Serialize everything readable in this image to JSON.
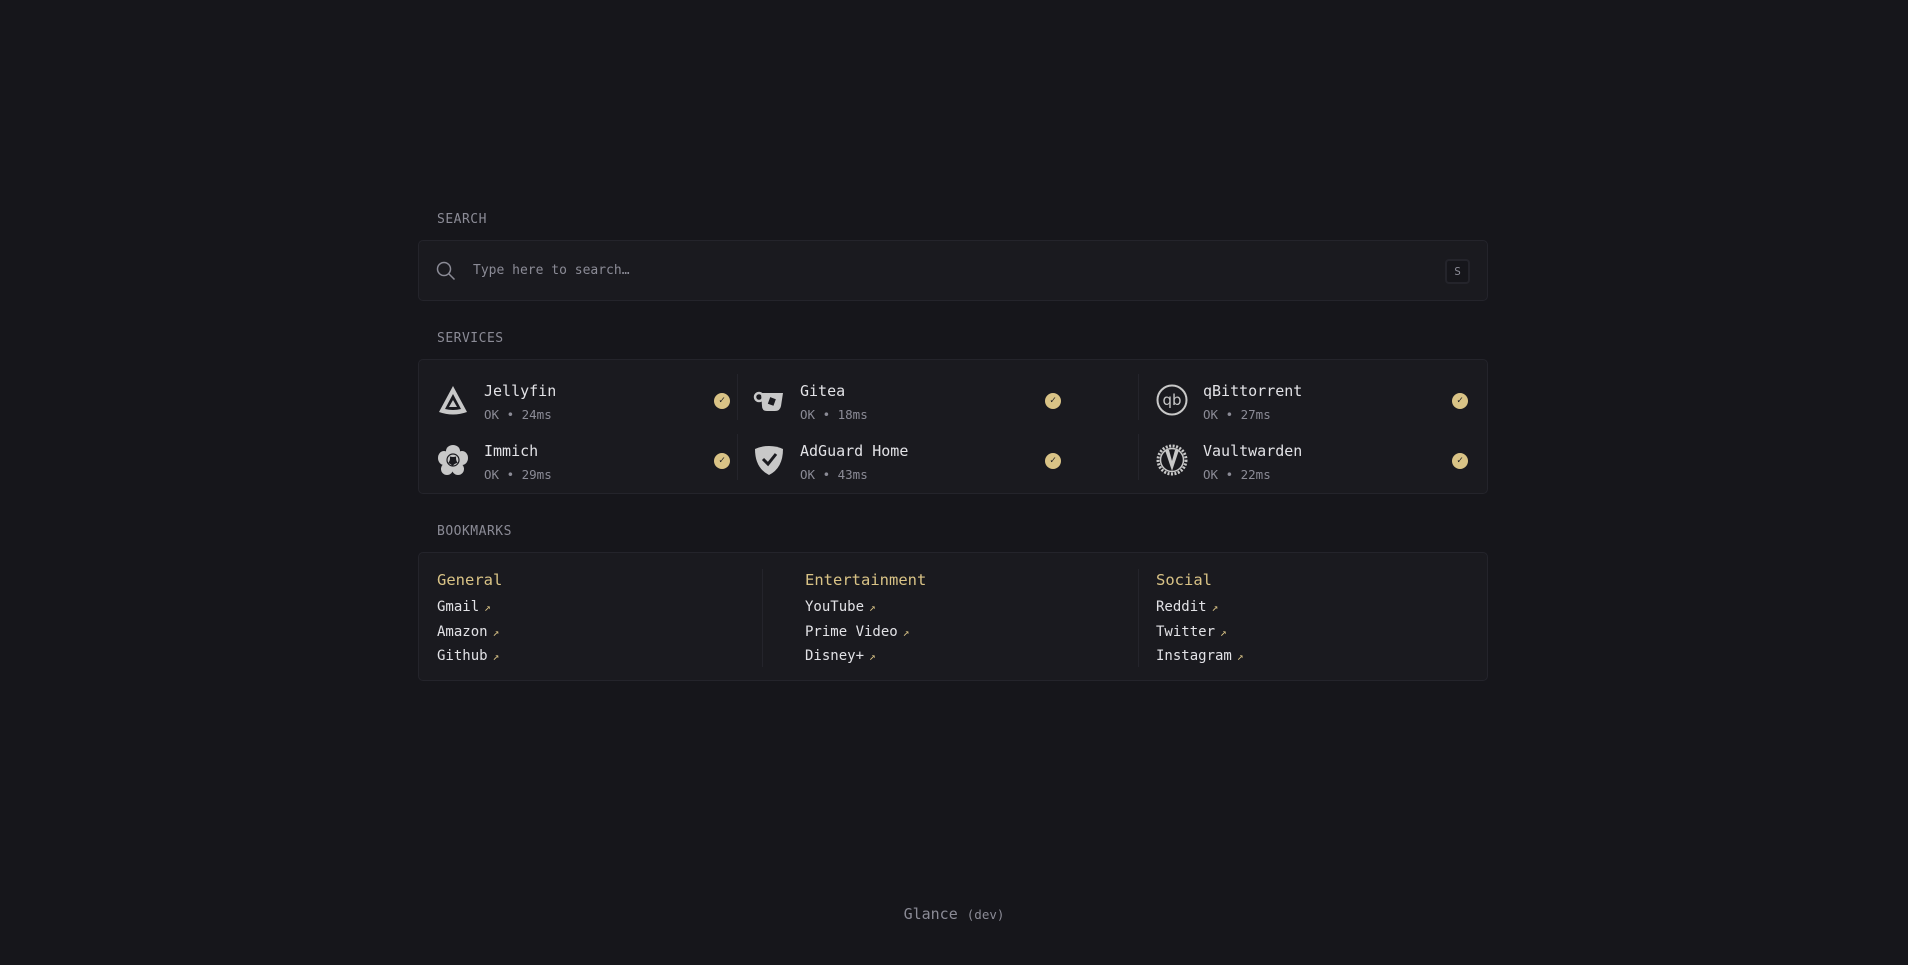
{
  "search": {
    "label": "SEARCH",
    "placeholder": "Type here to search…",
    "shortcut": "S"
  },
  "services": {
    "label": "SERVICES",
    "items": [
      {
        "name": "Jellyfin",
        "status": "OK • 24ms",
        "icon": "jellyfin-icon"
      },
      {
        "name": "Gitea",
        "status": "OK • 18ms",
        "icon": "gitea-icon"
      },
      {
        "name": "qBittorrent",
        "status": "OK • 27ms",
        "icon": "qbittorrent-icon"
      },
      {
        "name": "Immich",
        "status": "OK • 29ms",
        "icon": "immich-icon"
      },
      {
        "name": "AdGuard Home",
        "status": "OK • 43ms",
        "icon": "adguard-icon"
      },
      {
        "name": "Vaultwarden",
        "status": "OK • 22ms",
        "icon": "vaultwarden-icon"
      }
    ]
  },
  "bookmarks": {
    "label": "BOOKMARKS",
    "groups": [
      {
        "title": "General",
        "links": [
          "Gmail",
          "Amazon",
          "Github"
        ]
      },
      {
        "title": "Entertainment",
        "links": [
          "YouTube",
          "Prime Video",
          "Disney+"
        ]
      },
      {
        "title": "Social",
        "links": [
          "Reddit",
          "Twitter",
          "Instagram"
        ]
      }
    ],
    "arrow": "↗"
  },
  "footer": {
    "app": "Glance",
    "version": "(dev)"
  },
  "colors": {
    "accent": "#d9c386",
    "background": "#16161b",
    "panel": "#1a1a1f"
  }
}
